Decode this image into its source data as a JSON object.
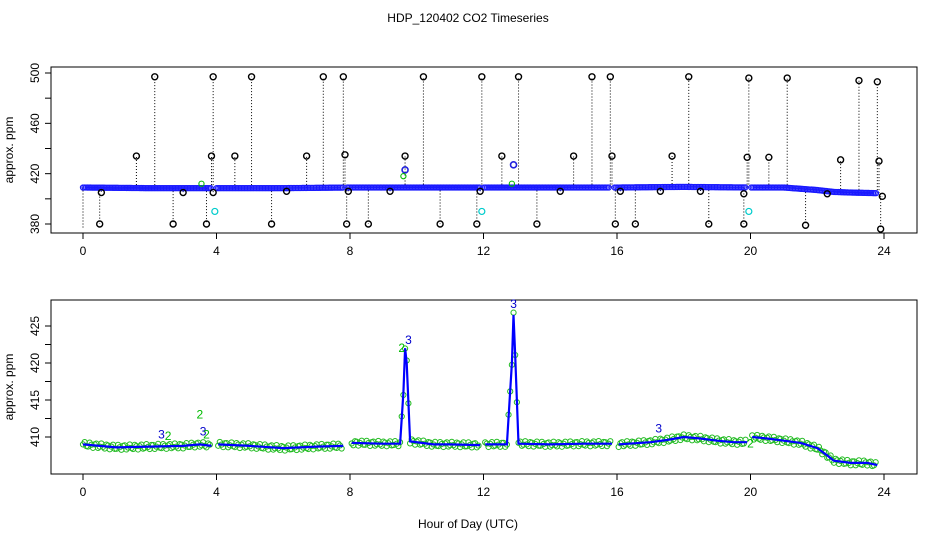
{
  "title": "HDP_120402  CO2 Timeseries",
  "xlabel": "Hour of Day (UTC)",
  "chart_data": [
    {
      "type": "scatter",
      "ylabel": "approx. ppm",
      "xlim": [
        0,
        24
      ],
      "ylim": [
        376,
        502
      ],
      "xticks": [
        0,
        4,
        8,
        12,
        16,
        20,
        24
      ],
      "yticks": [
        380,
        420,
        460,
        500
      ],
      "grid": false,
      "baseline": [
        [
          0,
          409
        ],
        [
          2,
          408.5
        ],
        [
          4,
          408.5
        ],
        [
          6,
          408.5
        ],
        [
          8,
          409
        ],
        [
          10,
          409
        ],
        [
          12,
          409
        ],
        [
          14,
          409
        ],
        [
          16,
          409
        ],
        [
          18,
          409.5
        ],
        [
          20,
          409
        ],
        [
          21,
          409
        ],
        [
          21.5,
          408
        ],
        [
          22,
          407
        ],
        [
          22.5,
          405.5
        ],
        [
          23,
          405
        ],
        [
          23.8,
          404.5
        ]
      ],
      "baseline_gaps": [
        3.9,
        7.85,
        11.95,
        15.85,
        19.95
      ],
      "spikes_high": [
        [
          2.15,
          497
        ],
        [
          3.9,
          497
        ],
        [
          5.05,
          497
        ],
        [
          7.2,
          497
        ],
        [
          7.8,
          497
        ],
        [
          10.2,
          497
        ],
        [
          11.95,
          497
        ],
        [
          13.05,
          497
        ],
        [
          15.25,
          497
        ],
        [
          15.8,
          497
        ],
        [
          18.15,
          497
        ],
        [
          19.95,
          496
        ],
        [
          21.1,
          496
        ],
        [
          23.25,
          494
        ],
        [
          23.8,
          493
        ]
      ],
      "spikes_mid": [
        [
          1.6,
          434
        ],
        [
          3.85,
          434
        ],
        [
          4.55,
          434
        ],
        [
          6.7,
          434
        ],
        [
          7.85,
          435
        ],
        [
          9.65,
          434
        ],
        [
          12.55,
          434
        ],
        [
          14.7,
          434
        ],
        [
          15.85,
          434
        ],
        [
          17.65,
          434
        ],
        [
          19.9,
          433
        ],
        [
          20.55,
          433
        ],
        [
          22.7,
          431
        ],
        [
          23.85,
          430
        ]
      ],
      "spikes_low": [
        [
          0.5,
          380
        ],
        [
          2.7,
          380
        ],
        [
          3.7,
          380
        ],
        [
          5.65,
          380
        ],
        [
          7.9,
          380
        ],
        [
          8.55,
          380
        ],
        [
          10.7,
          380
        ],
        [
          11.8,
          380
        ],
        [
          13.6,
          380
        ],
        [
          15.95,
          380
        ],
        [
          16.55,
          380
        ],
        [
          18.75,
          380
        ],
        [
          19.8,
          380
        ],
        [
          21.65,
          379
        ],
        [
          23.9,
          376
        ]
      ],
      "dips_small": [
        [
          0.55,
          405
        ],
        [
          3.0,
          405
        ],
        [
          3.9,
          405
        ],
        [
          6.1,
          406
        ],
        [
          7.95,
          406
        ],
        [
          9.2,
          406
        ],
        [
          11.9,
          406
        ],
        [
          14.3,
          406
        ],
        [
          16.1,
          406
        ],
        [
          17.3,
          406
        ],
        [
          18.5,
          406
        ],
        [
          19.8,
          404
        ],
        [
          22.3,
          404
        ],
        [
          23.95,
          402
        ]
      ],
      "blue_highlight": [
        [
          9.65,
          423
        ],
        [
          12.9,
          427
        ]
      ],
      "cyan_points": [
        [
          3.95,
          390
        ],
        [
          11.95,
          390
        ],
        [
          19.95,
          390
        ]
      ],
      "green_points": [
        [
          3.55,
          412
        ],
        [
          9.6,
          418
        ],
        [
          12.85,
          412
        ]
      ],
      "dotted_lines": true
    },
    {
      "type": "line",
      "ylabel": "approx. ppm",
      "xlim": [
        0,
        24
      ],
      "ylim": [
        406,
        428
      ],
      "xticks": [
        0,
        4,
        8,
        12,
        16,
        20,
        24
      ],
      "yticks": [
        410,
        415,
        420,
        425
      ],
      "grid": false,
      "series": [
        {
          "color": "#0000ff",
          "segments": [
            [
              [
                0,
                409
              ],
              [
                0.5,
                408.8
              ],
              [
                1,
                408.6
              ],
              [
                2,
                408.7
              ],
              [
                3,
                408.8
              ],
              [
                3.5,
                409
              ],
              [
                3.85,
                408.8
              ]
            ],
            [
              [
                4.05,
                409
              ],
              [
                5,
                408.8
              ],
              [
                6,
                408.5
              ],
              [
                7,
                408.7
              ],
              [
                7.8,
                408.8
              ]
            ],
            [
              [
                8.05,
                409.2
              ],
              [
                9,
                409.1
              ],
              [
                9.5,
                409.1
              ],
              [
                9.6,
                416
              ],
              [
                9.65,
                422
              ],
              [
                9.7,
                420
              ],
              [
                9.8,
                409.4
              ],
              [
                10.5,
                409
              ],
              [
                11,
                409
              ],
              [
                11.9,
                408.9
              ]
            ],
            [
              [
                12.05,
                409
              ],
              [
                12.7,
                409
              ],
              [
                12.85,
                420
              ],
              [
                12.9,
                426.5
              ],
              [
                12.95,
                421
              ],
              [
                13.05,
                409.1
              ],
              [
                14,
                409
              ],
              [
                15,
                409.1
              ],
              [
                15.85,
                409.1
              ]
            ],
            [
              [
                16.05,
                409
              ],
              [
                17,
                409.3
              ],
              [
                17.5,
                409.6
              ],
              [
                18,
                410
              ],
              [
                18.5,
                409.8
              ],
              [
                19,
                409.5
              ],
              [
                19.5,
                409.3
              ],
              [
                19.9,
                409.3
              ]
            ],
            [
              [
                20.05,
                410
              ],
              [
                20.5,
                409.8
              ],
              [
                21,
                409.5
              ],
              [
                21.5,
                409.2
              ],
              [
                22,
                408.5
              ],
              [
                22.3,
                407.5
              ],
              [
                22.5,
                406.8
              ],
              [
                23,
                406.5
              ],
              [
                23.5,
                406.5
              ],
              [
                23.8,
                406.2
              ]
            ]
          ]
        }
      ],
      "annotations": [
        {
          "text": "3",
          "x": 2.35,
          "y": 409.8,
          "color": "#0000cc"
        },
        {
          "text": "2",
          "x": 2.55,
          "y": 409.6,
          "color": "#00bb00"
        },
        {
          "text": "2",
          "x": 3.5,
          "y": 412.5,
          "color": "#00bb00"
        },
        {
          "text": "3",
          "x": 3.6,
          "y": 410.2,
          "color": "#0000cc"
        },
        {
          "text": "2",
          "x": 3.7,
          "y": 409.8,
          "color": "#00bb00"
        },
        {
          "text": "3",
          "x": 9.75,
          "y": 422.6,
          "color": "#0000cc"
        },
        {
          "text": "2",
          "x": 9.55,
          "y": 421.5,
          "color": "#00bb00"
        },
        {
          "text": "3",
          "x": 12.9,
          "y": 427.4,
          "color": "#0000cc"
        },
        {
          "text": "3",
          "x": 17.25,
          "y": 410.6,
          "color": "#0000cc"
        },
        {
          "text": "2",
          "x": 20.0,
          "y": 408.6,
          "color": "#00bb00"
        }
      ]
    }
  ]
}
